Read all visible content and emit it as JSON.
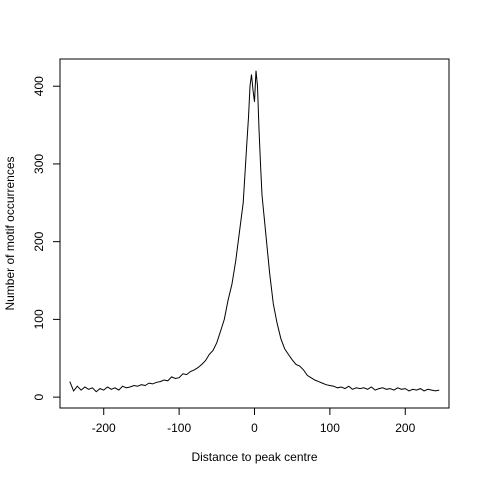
{
  "chart_data": {
    "type": "line",
    "title": "",
    "xlabel": "Distance to peak centre",
    "ylabel": "Number of motif occurrences",
    "xlim": [
      -258,
      258
    ],
    "ylim": [
      -14,
      435
    ],
    "x_ticks": [
      -200,
      -100,
      0,
      100,
      200
    ],
    "x_tick_labels": [
      "-200",
      "-100",
      "0",
      "100",
      "200"
    ],
    "y_ticks": [
      0,
      100,
      200,
      300,
      400
    ],
    "y_tick_labels": [
      "0",
      "100",
      "200",
      "300",
      "400"
    ],
    "grid": false,
    "line_color": "#000000",
    "series": [
      {
        "x": [
          -245,
          -240,
          -235,
          -230,
          -225,
          -220,
          -215,
          -210,
          -205,
          -200,
          -195,
          -190,
          -185,
          -180,
          -175,
          -170,
          -165,
          -160,
          -155,
          -150,
          -145,
          -140,
          -135,
          -130,
          -125,
          -120,
          -115,
          -110,
          -105,
          -100,
          -95,
          -90,
          -85,
          -80,
          -75,
          -70,
          -65,
          -60,
          -55,
          -50,
          -45,
          -40,
          -35,
          -30,
          -25,
          -20,
          -15,
          -10,
          -8,
          -6,
          -4,
          -2,
          0,
          2,
          4,
          6,
          8,
          10,
          15,
          20,
          25,
          30,
          35,
          40,
          45,
          50,
          55,
          60,
          65,
          70,
          75,
          80,
          85,
          90,
          95,
          100,
          105,
          110,
          115,
          120,
          125,
          130,
          135,
          140,
          145,
          150,
          155,
          160,
          165,
          170,
          175,
          180,
          185,
          190,
          195,
          200,
          205,
          210,
          215,
          220,
          225,
          230,
          235,
          240,
          245
        ],
        "y": [
          20,
          8,
          14,
          9,
          13,
          10,
          12,
          7,
          11,
          9,
          13,
          10,
          12,
          9,
          14,
          12,
          13,
          15,
          14,
          16,
          15,
          18,
          17,
          19,
          20,
          22,
          21,
          26,
          24,
          25,
          30,
          29,
          33,
          35,
          38,
          42,
          47,
          55,
          60,
          70,
          85,
          100,
          125,
          145,
          175,
          212,
          250,
          330,
          360,
          400,
          415,
          395,
          380,
          420,
          400,
          345,
          300,
          260,
          210,
          160,
          120,
          95,
          75,
          62,
          55,
          48,
          42,
          40,
          35,
          28,
          25,
          22,
          20,
          18,
          16,
          15,
          14,
          12,
          13,
          11,
          14,
          10,
          12,
          11,
          12,
          10,
          13,
          9,
          11,
          12,
          10,
          11,
          9,
          12,
          10,
          11,
          8,
          10,
          9,
          11,
          8,
          10,
          9,
          8,
          9
        ]
      }
    ]
  }
}
